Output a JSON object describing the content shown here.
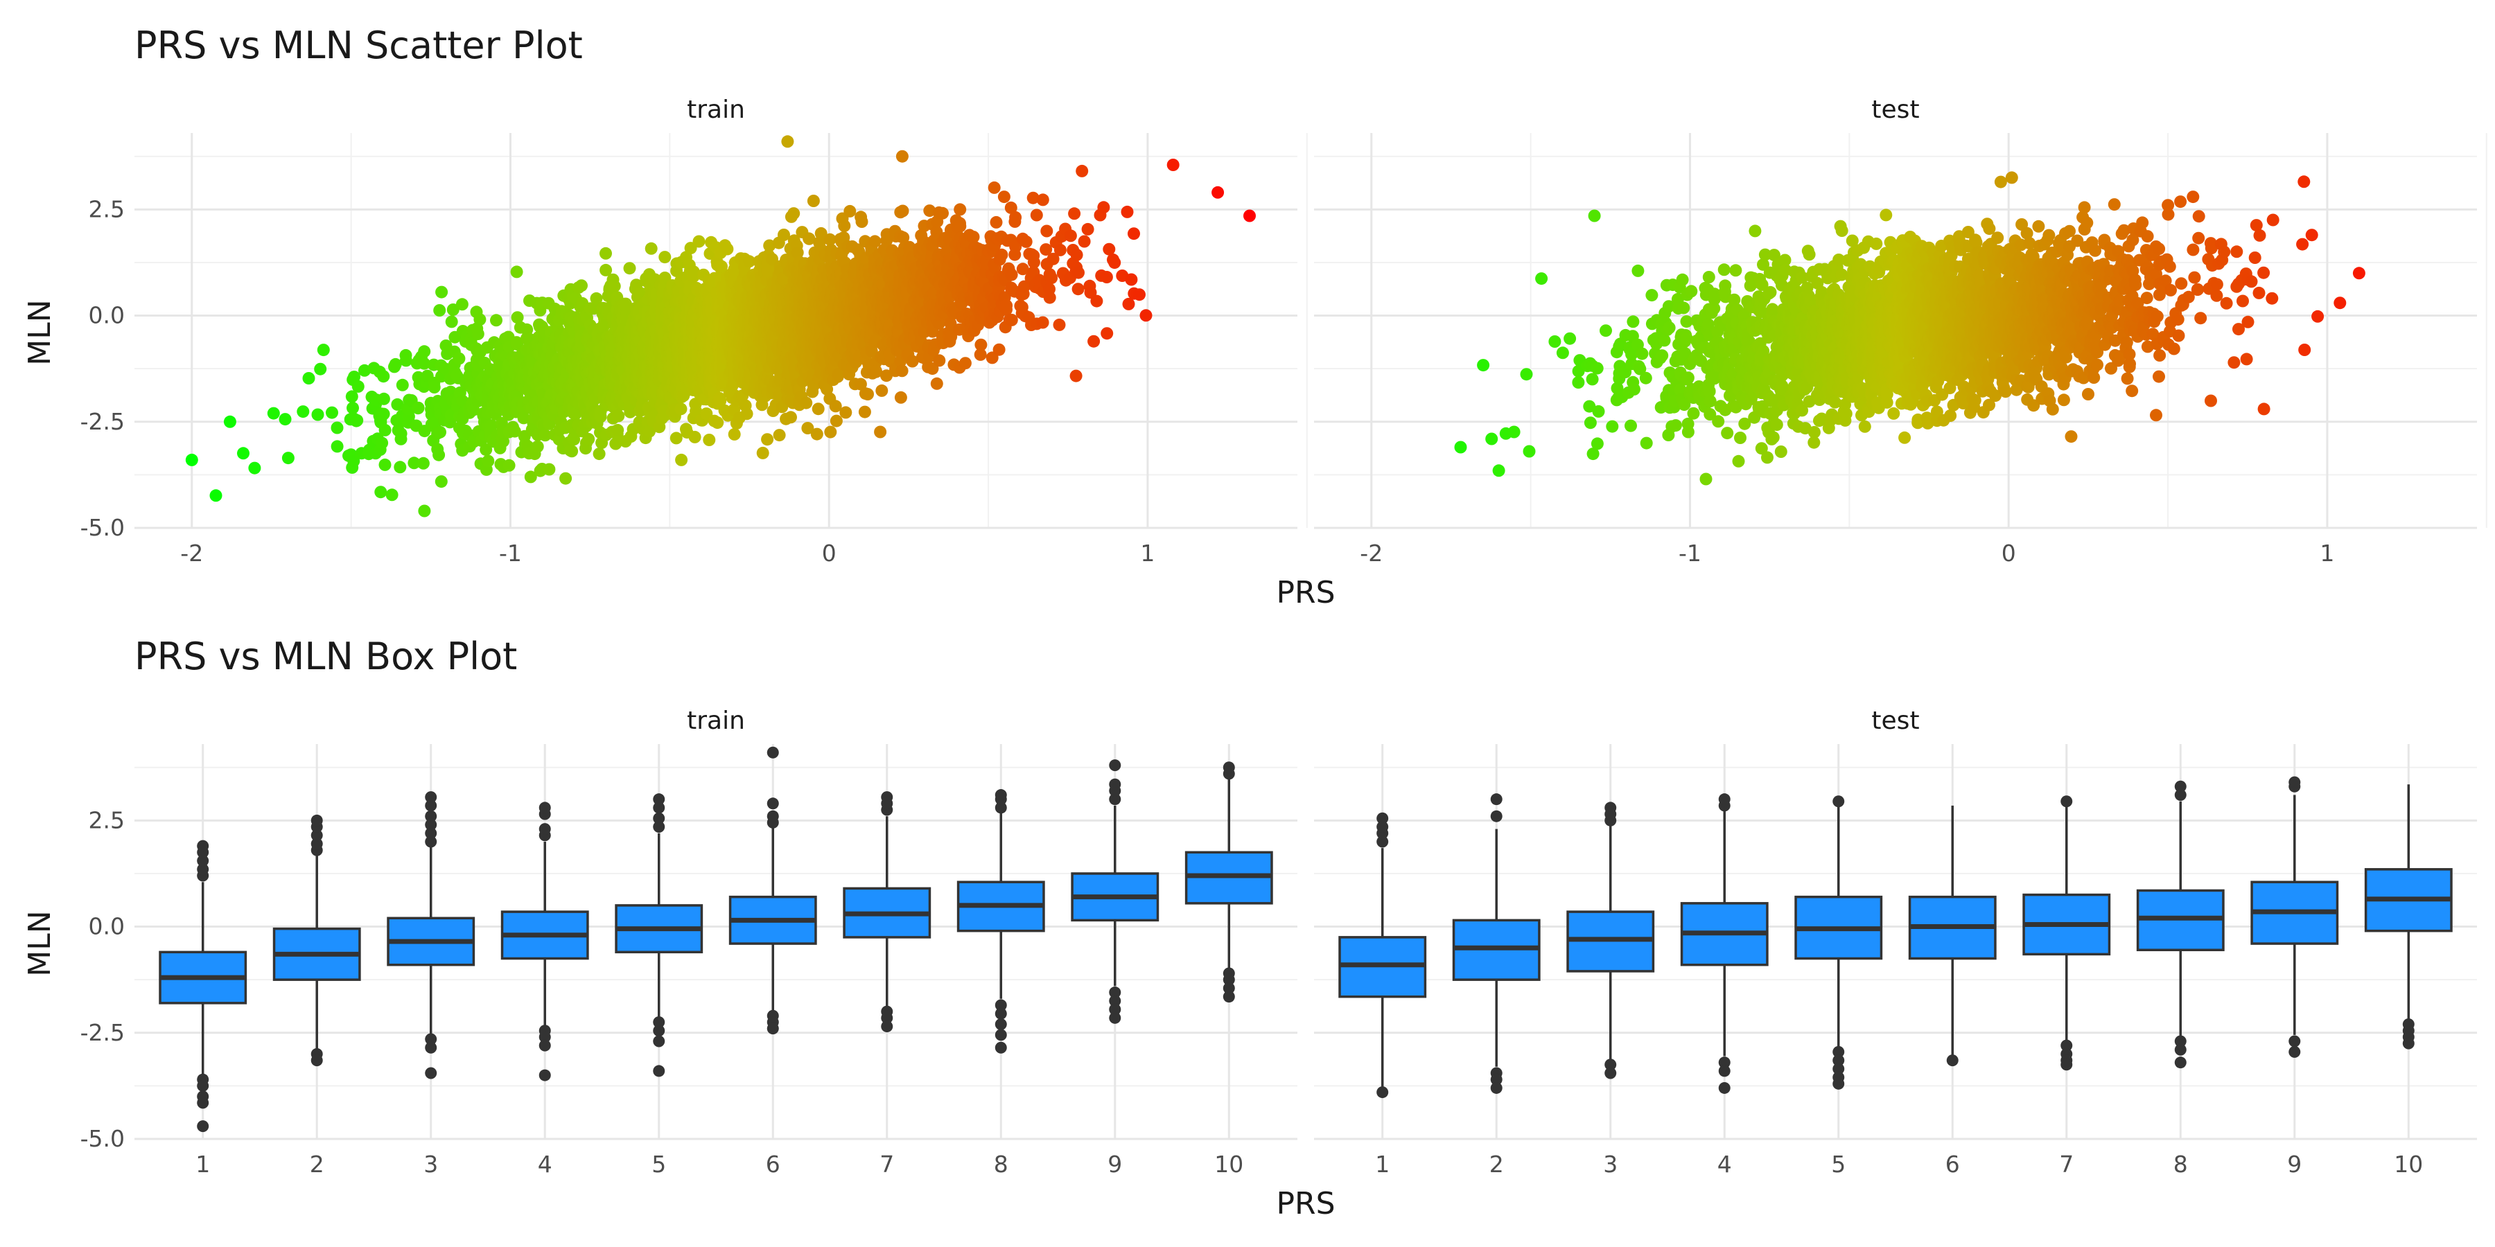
{
  "chart_data": [
    {
      "type": "scatter",
      "title": "PRS vs MLN Scatter Plot",
      "xlabel": "PRS",
      "ylabel": "MLN",
      "xlim": [
        -2.18,
        1.47
      ],
      "ylim": [
        -5.0,
        4.3
      ],
      "x_ticks": [
        -2,
        -1,
        0,
        1
      ],
      "y_ticks": [
        -5.0,
        -2.5,
        0.0,
        2.5
      ],
      "x_tick_labels": [
        "-2",
        "-1",
        "0",
        "1"
      ],
      "y_tick_labels": [
        "-5.0",
        "-2.5",
        "0.0",
        "2.5"
      ],
      "grid": true,
      "legend": "none",
      "color_scale": {
        "low": "#00ff00",
        "mid": "#bfbf00",
        "high": "#ff0000",
        "domain": [
          -2.0,
          1.32
        ]
      },
      "panels": [
        {
          "label": "train",
          "trend": {
            "intercept": 0.0,
            "slope": 1.55,
            "x_mean": -0.3,
            "x_sd": 0.45,
            "y_sd": 0.85,
            "x_range": [
              -1.95,
              1.0
            ]
          },
          "extreme_points": [
            [
              -2.0,
              -3.4
            ],
            [
              1.32,
              2.35
            ],
            [
              1.22,
              2.9
            ],
            [
              -1.27,
              -4.6
            ],
            [
              -0.13,
              4.1
            ],
            [
              0.23,
              3.75
            ],
            [
              1.08,
              3.55
            ],
            [
              -1.88,
              -2.5
            ]
          ]
        },
        {
          "label": "test",
          "trend": {
            "intercept": 0.0,
            "slope": 1.0,
            "x_mean": -0.28,
            "x_sd": 0.4,
            "y_sd": 0.9,
            "x_range": [
              -1.75,
              0.98
            ]
          },
          "extreme_points": [
            [
              -1.72,
              -3.1
            ],
            [
              -1.6,
              -3.65
            ],
            [
              1.1,
              1.0
            ],
            [
              0.97,
              -0.02
            ],
            [
              -0.95,
              -3.85
            ],
            [
              0.01,
              3.25
            ],
            [
              -1.3,
              2.35
            ],
            [
              0.5,
              2.6
            ],
            [
              1.04,
              0.3
            ]
          ]
        }
      ]
    },
    {
      "type": "box",
      "title": "PRS vs MLN Box Plot",
      "xlabel": "PRS",
      "ylabel": "MLN",
      "ylim": [
        -5.0,
        4.3
      ],
      "categories": [
        "1",
        "2",
        "3",
        "4",
        "5",
        "6",
        "7",
        "8",
        "9",
        "10"
      ],
      "y_ticks": [
        -5.0,
        -2.5,
        0.0,
        2.5
      ],
      "y_tick_labels": [
        "-5.0",
        "-2.5",
        "0.0",
        "2.5"
      ],
      "fill_color": "#1e90ff",
      "outline_color": "#333333",
      "grid": true,
      "legend": "none",
      "panels": [
        {
          "label": "train",
          "boxes": [
            {
              "q1": -1.8,
              "median": -1.2,
              "q3": -0.6,
              "whisker_low": -3.5,
              "whisker_high": 1.05,
              "outliers": [
                1.2,
                1.35,
                1.55,
                1.75,
                1.9,
                -3.6,
                -3.75,
                -4.0,
                -4.15,
                -4.7
              ]
            },
            {
              "q1": -1.25,
              "median": -0.65,
              "q3": -0.05,
              "whisker_low": -2.9,
              "whisker_high": 1.7,
              "outliers": [
                1.8,
                1.95,
                2.15,
                2.35,
                2.5,
                -3.0,
                -3.15
              ]
            },
            {
              "q1": -0.9,
              "median": -0.35,
              "q3": 0.2,
              "whisker_low": -2.55,
              "whisker_high": 1.9,
              "outliers": [
                2.0,
                2.2,
                2.4,
                2.6,
                2.85,
                3.05,
                -2.65,
                -2.85,
                -3.45
              ]
            },
            {
              "q1": -0.75,
              "median": -0.2,
              "q3": 0.35,
              "whisker_low": -2.4,
              "whisker_high": 2.0,
              "outliers": [
                2.15,
                2.3,
                2.65,
                2.8,
                -2.45,
                -2.6,
                -2.8,
                -3.5
              ]
            },
            {
              "q1": -0.6,
              "median": -0.05,
              "q3": 0.5,
              "whisker_low": -2.2,
              "whisker_high": 2.2,
              "outliers": [
                2.35,
                2.55,
                2.8,
                3.0,
                -2.25,
                -2.45,
                -2.7,
                -3.4
              ]
            },
            {
              "q1": -0.4,
              "median": 0.15,
              "q3": 0.7,
              "whisker_low": -2.0,
              "whisker_high": 2.35,
              "outliers": [
                2.45,
                2.6,
                2.9,
                4.1,
                -2.1,
                -2.25,
                -2.4
              ]
            },
            {
              "q1": -0.25,
              "median": 0.3,
              "q3": 0.9,
              "whisker_low": -1.95,
              "whisker_high": 2.6,
              "outliers": [
                2.75,
                2.9,
                3.05,
                -2.0,
                -2.15,
                -2.35
              ]
            },
            {
              "q1": -0.1,
              "median": 0.5,
              "q3": 1.05,
              "whisker_low": -1.7,
              "whisker_high": 2.7,
              "outliers": [
                2.8,
                3.0,
                3.1,
                -1.85,
                -2.05,
                -2.3,
                -2.55,
                -2.85
              ]
            },
            {
              "q1": 0.15,
              "median": 0.7,
              "q3": 1.25,
              "whisker_low": -1.4,
              "whisker_high": 2.85,
              "outliers": [
                3.0,
                3.2,
                3.35,
                3.8,
                -1.55,
                -1.75,
                -1.95,
                -2.15
              ]
            },
            {
              "q1": 0.55,
              "median": 1.2,
              "q3": 1.75,
              "whisker_low": -1.0,
              "whisker_high": 3.5,
              "outliers": [
                3.6,
                3.75,
                -1.1,
                -1.25,
                -1.45,
                -1.65
              ]
            }
          ]
        },
        {
          "label": "test",
          "boxes": [
            {
              "q1": -1.65,
              "median": -0.9,
              "q3": -0.25,
              "whisker_low": -3.85,
              "whisker_high": 1.85,
              "outliers": [
                2.0,
                2.2,
                2.35,
                2.55,
                -3.9
              ]
            },
            {
              "q1": -1.25,
              "median": -0.5,
              "q3": 0.15,
              "whisker_low": -3.3,
              "whisker_high": 2.3,
              "outliers": [
                2.6,
                3.0,
                -3.45,
                -3.6,
                -3.8
              ]
            },
            {
              "q1": -1.05,
              "median": -0.3,
              "q3": 0.35,
              "whisker_low": -3.15,
              "whisker_high": 2.4,
              "outliers": [
                2.5,
                2.65,
                2.8,
                -3.25,
                -3.45
              ]
            },
            {
              "q1": -0.9,
              "median": -0.15,
              "q3": 0.55,
              "whisker_low": -3.05,
              "whisker_high": 2.75,
              "outliers": [
                2.85,
                3.0,
                -3.2,
                -3.4,
                -3.8
              ]
            },
            {
              "q1": -0.75,
              "median": -0.05,
              "q3": 0.7,
              "whisker_low": -2.85,
              "whisker_high": 2.85,
              "outliers": [
                2.95,
                -2.95,
                -3.15,
                -3.35,
                -3.55,
                -3.7
              ]
            },
            {
              "q1": -0.75,
              "median": 0.0,
              "q3": 0.7,
              "whisker_low": -3.1,
              "whisker_high": 2.85,
              "outliers": [
                -3.15
              ]
            },
            {
              "q1": -0.65,
              "median": 0.05,
              "q3": 0.75,
              "whisker_low": -2.7,
              "whisker_high": 2.85,
              "outliers": [
                2.95,
                -2.8,
                -3.0,
                -3.15,
                -3.25
              ]
            },
            {
              "q1": -0.55,
              "median": 0.2,
              "q3": 0.85,
              "whisker_low": -2.6,
              "whisker_high": 2.95,
              "outliers": [
                3.1,
                3.3,
                -2.7,
                -2.9,
                -3.2
              ]
            },
            {
              "q1": -0.4,
              "median": 0.35,
              "q3": 1.05,
              "whisker_low": -2.55,
              "whisker_high": 3.1,
              "outliers": [
                3.3,
                3.4,
                -2.7,
                -2.95
              ]
            },
            {
              "q1": -0.1,
              "median": 0.65,
              "q3": 1.35,
              "whisker_low": -2.2,
              "whisker_high": 3.35,
              "outliers": [
                -2.3,
                -2.45,
                -2.6,
                -2.75
              ]
            }
          ]
        }
      ]
    }
  ]
}
